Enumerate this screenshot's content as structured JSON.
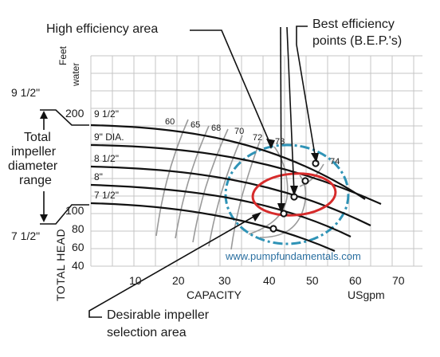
{
  "labels": {
    "high_efficiency_area": "High efficiency area",
    "bep_line1": "Best efficiency",
    "bep_line2": "points (B.E.P.'s)",
    "feet_water_1": "Feet",
    "feet_water_2": "water",
    "range_top": "9 1/2\"",
    "range_bottom": "7 1/2\"",
    "total_impeller": [
      "Total",
      "impeller",
      "diameter",
      "range"
    ],
    "total_head": "TOTAL HEAD",
    "capacity": "CAPACITY",
    "usgpm": "USgpm",
    "desirable_1": "Desirable impeller",
    "desirable_2": "selection area",
    "watermark": "www.pumpfundamentals.com"
  },
  "chart_data": {
    "type": "line",
    "x_ticks": [
      10,
      20,
      30,
      40,
      50,
      60,
      70
    ],
    "y_ticks": [
      40,
      60,
      80,
      100,
      200
    ],
    "impeller_curves": [
      "9 1/2\"",
      "9\" DIA.",
      "8 1/2\"",
      "8\"",
      "7 1/2\""
    ],
    "efficiency_labels": [
      "60",
      "65",
      "68",
      "70",
      "72",
      "73",
      "74"
    ],
    "bep_points": 5,
    "colors": {
      "curve": "#111111",
      "iso": "#9a9a9a",
      "grid": "#c4c4c4",
      "blue": "#2f93b6",
      "red": "#d62b2b"
    }
  }
}
